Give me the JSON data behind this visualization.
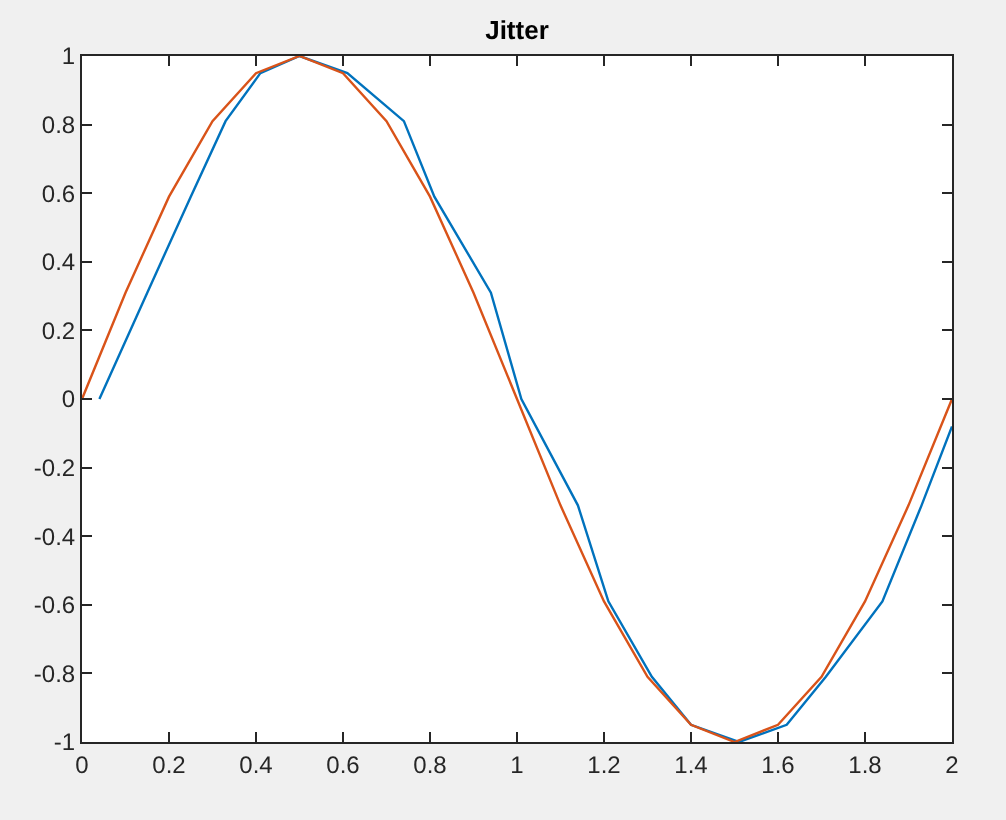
{
  "chart_data": {
    "type": "line",
    "title": "Jitter",
    "series": [
      {
        "color": "#0072bd",
        "x": [
          0.04,
          0.15,
          0.25,
          0.33,
          0.41,
          0.5,
          0.61,
          0.74,
          0.81,
          0.94,
          1.01,
          1.14,
          1.21,
          1.31,
          1.4,
          1.51,
          1.62,
          1.71,
          1.84,
          1.93,
          2.0
        ],
        "values": [
          0,
          0.31,
          0.59,
          0.81,
          0.95,
          1,
          0.95,
          0.81,
          0.59,
          0.31,
          0,
          -0.31,
          -0.59,
          -0.81,
          -0.95,
          -1,
          -0.95,
          -0.81,
          -0.59,
          -0.31,
          -0.08
        ]
      },
      {
        "color": "#d95319",
        "x": [
          0,
          0.1,
          0.2,
          0.3,
          0.4,
          0.5,
          0.6,
          0.7,
          0.8,
          0.9,
          1.0,
          1.1,
          1.2,
          1.3,
          1.4,
          1.5,
          1.6,
          1.7,
          1.8,
          1.9,
          2.0
        ],
        "values": [
          0,
          0.31,
          0.59,
          0.81,
          0.95,
          1,
          0.95,
          0.81,
          0.59,
          0.31,
          0,
          -0.31,
          -0.59,
          -0.81,
          -0.95,
          -1,
          -0.95,
          -0.81,
          -0.59,
          -0.31,
          0
        ]
      }
    ],
    "xlim": [
      0,
      2
    ],
    "xticks": [
      0,
      0.2,
      0.4,
      0.6,
      0.8,
      1,
      1.2,
      1.4,
      1.6,
      1.8,
      2
    ],
    "ylim": [
      -1,
      1
    ],
    "yticks": [
      -1,
      -0.8,
      -0.6,
      -0.4,
      -0.2,
      0,
      0.2,
      0.4,
      0.6,
      0.8,
      1
    ]
  }
}
